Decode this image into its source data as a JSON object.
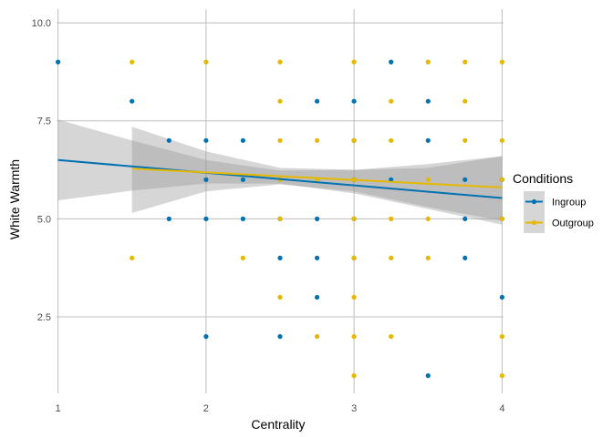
{
  "chart_data": {
    "type": "scatter",
    "title": "",
    "xlabel": "Centrality",
    "ylabel": "White Warmth",
    "xlim": [
      0.99,
      4.01
    ],
    "ylim": [
      0.55,
      10.35
    ],
    "x_ticks": [
      1,
      2,
      3,
      4
    ],
    "x_tick_labels": [
      "1",
      "2",
      "3",
      "4"
    ],
    "y_ticks": [
      2.5,
      5.0,
      7.5,
      10.0
    ],
    "y_tick_labels": [
      "2.5",
      "5.0",
      "7.5",
      "10.0"
    ],
    "grid": true,
    "legend": {
      "title": "Conditions",
      "position": "right"
    },
    "series": [
      {
        "name": "Ingroup",
        "color": "#0072B2",
        "points": [
          [
            1,
            9
          ],
          [
            1.5,
            8
          ],
          [
            1.75,
            7
          ],
          [
            1.75,
            5
          ],
          [
            2,
            7
          ],
          [
            2,
            6
          ],
          [
            2,
            5
          ],
          [
            2,
            2
          ],
          [
            2.25,
            7
          ],
          [
            2.25,
            6
          ],
          [
            2.25,
            5
          ],
          [
            2.5,
            5
          ],
          [
            2.5,
            4
          ],
          [
            2.5,
            2
          ],
          [
            2.75,
            8
          ],
          [
            2.75,
            6
          ],
          [
            2.75,
            5
          ],
          [
            2.75,
            4
          ],
          [
            2.75,
            3
          ],
          [
            3,
            8
          ],
          [
            3,
            7
          ],
          [
            3,
            6
          ],
          [
            3,
            5
          ],
          [
            3,
            4
          ],
          [
            3.25,
            9
          ],
          [
            3.25,
            6
          ],
          [
            3.5,
            8
          ],
          [
            3.5,
            7
          ],
          [
            3.5,
            1
          ],
          [
            3.75,
            6
          ],
          [
            3.75,
            5
          ],
          [
            3.75,
            4
          ],
          [
            4,
            6
          ],
          [
            4,
            5
          ],
          [
            4,
            3
          ]
        ],
        "fit": {
          "x": [
            1,
            4
          ],
          "y": [
            6.5,
            5.53
          ]
        },
        "ci": {
          "x": [
            1,
            1.5,
            2,
            2.5,
            3,
            3.5,
            4
          ],
          "lower": [
            5.47,
            5.72,
            5.9,
            5.9,
            5.65,
            5.25,
            4.85
          ],
          "upper": [
            7.53,
            7.0,
            6.5,
            6.23,
            6.25,
            6.3,
            6.6
          ]
        }
      },
      {
        "name": "Outgroup",
        "color": "#E6B800",
        "points": [
          [
            1.5,
            9
          ],
          [
            1.5,
            4
          ],
          [
            2,
            9
          ],
          [
            2.25,
            4
          ],
          [
            2.5,
            9
          ],
          [
            2.5,
            8
          ],
          [
            2.5,
            7
          ],
          [
            2.5,
            6
          ],
          [
            2.5,
            5
          ],
          [
            2.5,
            3
          ],
          [
            2.75,
            7
          ],
          [
            2.75,
            6
          ],
          [
            2.75,
            2
          ],
          [
            3,
            9
          ],
          [
            3,
            7
          ],
          [
            3,
            6
          ],
          [
            3,
            5
          ],
          [
            3,
            4
          ],
          [
            3,
            3
          ],
          [
            3,
            2
          ],
          [
            3,
            1
          ],
          [
            3.25,
            8
          ],
          [
            3.25,
            7
          ],
          [
            3.25,
            5
          ],
          [
            3.25,
            4
          ],
          [
            3.25,
            2
          ],
          [
            3.5,
            9
          ],
          [
            3.5,
            6
          ],
          [
            3.5,
            5
          ],
          [
            3.5,
            4
          ],
          [
            3.75,
            9
          ],
          [
            3.75,
            8
          ],
          [
            3.75,
            7
          ],
          [
            4,
            9
          ],
          [
            4,
            7
          ],
          [
            4,
            6
          ],
          [
            4,
            5
          ],
          [
            4,
            2
          ],
          [
            4,
            1
          ]
        ],
        "fit": {
          "x": [
            1.5,
            4
          ],
          "y": [
            6.28,
            5.8
          ]
        },
        "ci": {
          "x": [
            1.5,
            2,
            2.5,
            3,
            3.5,
            4
          ],
          "lower": [
            5.15,
            5.7,
            5.88,
            5.7,
            5.3,
            4.95
          ],
          "upper": [
            7.35,
            6.72,
            6.3,
            6.25,
            6.4,
            6.6
          ]
        }
      }
    ]
  }
}
